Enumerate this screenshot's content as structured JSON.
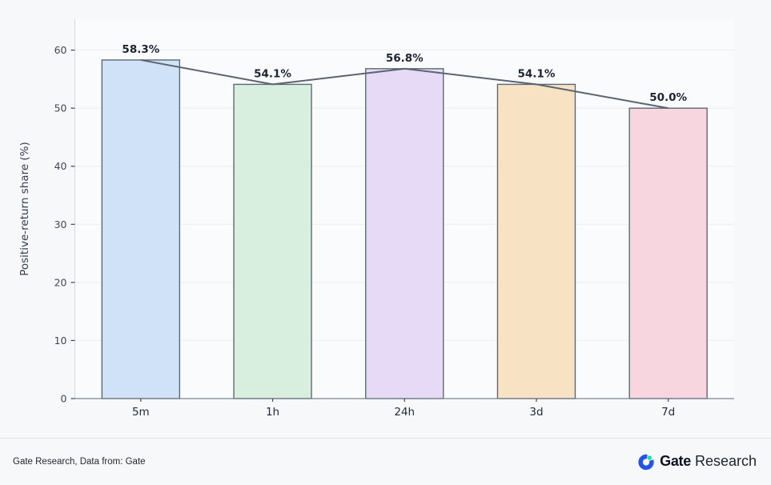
{
  "chart_data": {
    "type": "bar",
    "title": "",
    "categories": [
      "5m",
      "1h",
      "24h",
      "3d",
      "7d"
    ],
    "values": [
      58.3,
      54.1,
      56.8,
      54.1,
      50.0
    ],
    "bar_labels": [
      "58.3%",
      "54.1%",
      "56.8%",
      "54.1%",
      "50.0%"
    ],
    "series": [
      {
        "name": "positive-return-share-bars",
        "type": "bar",
        "values": [
          58.3,
          54.1,
          56.8,
          54.1,
          50.0
        ]
      },
      {
        "name": "positive-return-share-trendline",
        "type": "line",
        "values": [
          58.3,
          54.1,
          56.8,
          54.1,
          50.0
        ]
      }
    ],
    "xlabel": "",
    "ylabel": "Positive-return share (%)",
    "ylim": [
      0,
      60
    ],
    "yticks": [
      0,
      10,
      20,
      30,
      40,
      50,
      60
    ],
    "grid": true,
    "legend": false,
    "colors": {
      "bar_fills": [
        "#cfe2f8",
        "#d8eedf",
        "#e6daf6",
        "#f7e3c3",
        "#f8d6e0"
      ],
      "bar_border": "#5f6875",
      "trend_line": "#5b6471",
      "plot_background": "#fafbfd",
      "grid_line": "#ebedf2",
      "left_spine": "#d8dbe1",
      "bottom_spine": "#7e8692",
      "tick_mark": "#3d4859"
    }
  },
  "footer": {
    "source_text": "Gate Research, Data from: Gate",
    "logo": {
      "icon": "gate-logo-icon",
      "brand_bold": "Gate",
      "brand_regular": "Research",
      "blue": "#2354e6",
      "green": "#17e6a1"
    }
  }
}
